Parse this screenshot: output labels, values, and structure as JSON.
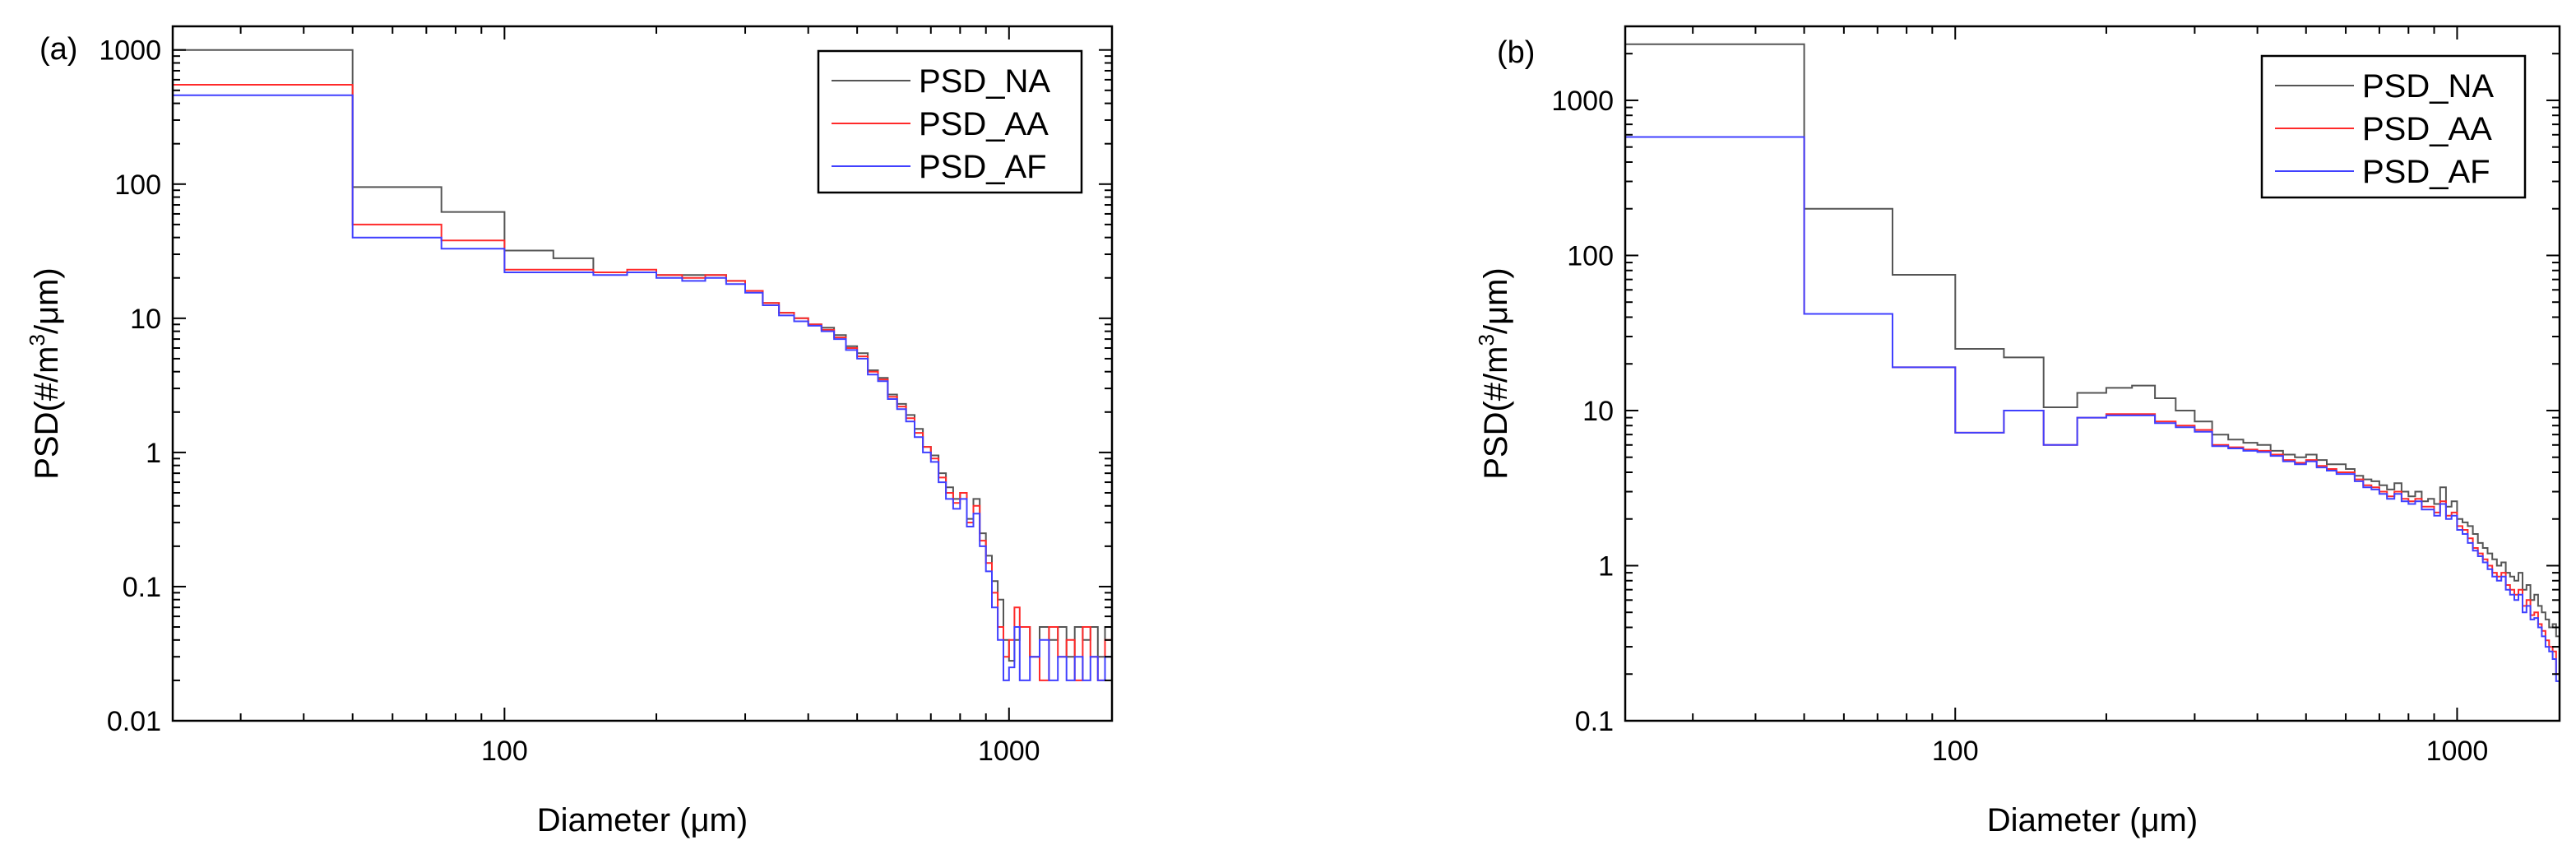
{
  "colors": {
    "PSD_NA": "#555555",
    "PSD_AA": "#ff2a2a",
    "PSD_AF": "#4040ff"
  },
  "chart_data": [
    {
      "type": "line",
      "panel_label": "(a)",
      "xlabel_prefix": "Diameter (",
      "xlabel_mu": "μ",
      "xlabel_suffix": "m)",
      "ylabel_prefix": "PSD(#/m",
      "ylabel_sup": "3",
      "ylabel_suffix": "/μm)",
      "xscale": "log",
      "yscale": "log",
      "xlim": [
        22,
        1600
      ],
      "ylim": [
        0.01,
        1500
      ],
      "xticks": [
        100,
        1000
      ],
      "xtick_labels": [
        "100",
        "1000"
      ],
      "yticks": [
        0.01,
        0.1,
        1,
        10,
        100,
        1000
      ],
      "ytick_labels": [
        "0.01",
        "0.1",
        "1",
        "10",
        "100",
        "1000"
      ],
      "legend_position": "top-right",
      "grid": false,
      "series": [
        {
          "name": "PSD_NA",
          "x": [
            22,
            50,
            75,
            100,
            125,
            150,
            175,
            200,
            225,
            250,
            275,
            300,
            325,
            350,
            375,
            400,
            425,
            450,
            475,
            500,
            525,
            550,
            575,
            600,
            625,
            650,
            675,
            700,
            725,
            750,
            775,
            800,
            825,
            850,
            875,
            900,
            925,
            950,
            975,
            1000,
            1025,
            1050,
            1100,
            1150,
            1200,
            1250,
            1300,
            1350,
            1400,
            1450,
            1500,
            1550,
            1600
          ],
          "y": [
            1000,
            95,
            62,
            32,
            28,
            22,
            22,
            21,
            21,
            21,
            19,
            16,
            13,
            11,
            10,
            9,
            8.5,
            7.5,
            6.2,
            5.5,
            4.1,
            3.6,
            2.7,
            2.3,
            1.9,
            1.5,
            1.1,
            0.95,
            0.7,
            0.55,
            0.45,
            0.5,
            0.32,
            0.45,
            0.25,
            0.17,
            0.11,
            0.08,
            0.04,
            0.028,
            0.04,
            0.05,
            0.03,
            0.05,
            0.04,
            0.05,
            0.03,
            0.05,
            0.04,
            0.05,
            0.03,
            0.05,
            0.05
          ]
        },
        {
          "name": "PSD_AA",
          "x": [
            22,
            50,
            75,
            100,
            125,
            150,
            175,
            200,
            225,
            250,
            275,
            300,
            325,
            350,
            375,
            400,
            425,
            450,
            475,
            500,
            525,
            550,
            575,
            600,
            625,
            650,
            675,
            700,
            725,
            750,
            775,
            800,
            825,
            850,
            875,
            900,
            925,
            950,
            975,
            1000,
            1025,
            1050,
            1100,
            1150,
            1200,
            1250,
            1300,
            1350,
            1400,
            1450,
            1500,
            1550,
            1600
          ],
          "y": [
            550,
            50,
            38,
            23,
            23,
            22,
            23,
            21,
            20,
            21,
            19,
            16,
            13,
            11,
            10,
            9,
            8.2,
            7.2,
            6.0,
            5.2,
            4.0,
            3.5,
            2.6,
            2.2,
            1.8,
            1.4,
            1.1,
            0.9,
            0.65,
            0.5,
            0.42,
            0.5,
            0.3,
            0.4,
            0.22,
            0.15,
            0.09,
            0.05,
            0.03,
            0.04,
            0.07,
            0.05,
            0.03,
            0.02,
            0.05,
            0.03,
            0.04,
            0.02,
            0.05,
            0.03,
            0.02,
            0.04,
            0.04
          ]
        },
        {
          "name": "PSD_AF",
          "x": [
            22,
            50,
            75,
            100,
            125,
            150,
            175,
            200,
            225,
            250,
            275,
            300,
            325,
            350,
            375,
            400,
            425,
            450,
            475,
            500,
            525,
            550,
            575,
            600,
            625,
            650,
            675,
            700,
            725,
            750,
            775,
            800,
            825,
            850,
            875,
            900,
            925,
            950,
            975,
            1000,
            1025,
            1050,
            1100,
            1150,
            1200,
            1250,
            1300,
            1350,
            1400,
            1450,
            1500,
            1550,
            1600
          ],
          "y": [
            460,
            40,
            33,
            22,
            22,
            21,
            22,
            20,
            19,
            20,
            18,
            15.5,
            12.5,
            10.5,
            9.5,
            8.8,
            8,
            7,
            5.8,
            5,
            3.8,
            3.4,
            2.5,
            2.1,
            1.7,
            1.3,
            1.0,
            0.85,
            0.6,
            0.45,
            0.38,
            0.45,
            0.28,
            0.35,
            0.2,
            0.13,
            0.07,
            0.04,
            0.02,
            0.025,
            0.05,
            0.02,
            0.03,
            0.04,
            0.02,
            0.03,
            0.02,
            0.03,
            0.02,
            0.03,
            0.02,
            0.03,
            0.03
          ]
        }
      ]
    },
    {
      "type": "line",
      "panel_label": "(b)",
      "xlabel_prefix": "Diameter (",
      "xlabel_mu": "μ",
      "xlabel_suffix": "m)",
      "ylabel_prefix": "PSD(#/m",
      "ylabel_sup": "3",
      "ylabel_suffix": "/μm)",
      "xscale": "log",
      "yscale": "log",
      "xlim": [
        22,
        1600
      ],
      "ylim": [
        0.1,
        3000
      ],
      "xticks": [
        100,
        1000
      ],
      "xtick_labels": [
        "100",
        "1000"
      ],
      "yticks": [
        0.1,
        1,
        10,
        100,
        1000
      ],
      "ytick_labels": [
        "0.1",
        "1",
        "10",
        "100",
        "1000"
      ],
      "legend_position": "top-right",
      "grid": false,
      "series": [
        {
          "name": "PSD_NA",
          "x": [
            22,
            50,
            75,
            100,
            125,
            150,
            175,
            200,
            225,
            250,
            275,
            300,
            325,
            350,
            375,
            400,
            425,
            450,
            475,
            500,
            525,
            550,
            575,
            600,
            625,
            650,
            675,
            700,
            725,
            750,
            775,
            800,
            825,
            850,
            875,
            900,
            925,
            950,
            975,
            1000,
            1025,
            1050,
            1075,
            1100,
            1125,
            1150,
            1175,
            1200,
            1225,
            1250,
            1275,
            1300,
            1325,
            1350,
            1375,
            1400,
            1425,
            1450,
            1475,
            1500,
            1525,
            1550,
            1575,
            1600
          ],
          "y": [
            2300,
            200,
            75,
            25,
            22,
            10.5,
            13,
            14,
            14.5,
            12,
            10,
            8.5,
            7,
            6.5,
            6.2,
            6,
            5.5,
            5.2,
            5,
            5.2,
            4.8,
            4.5,
            4.5,
            4.2,
            3.8,
            3.6,
            3.5,
            3.3,
            3.1,
            3.4,
            3.0,
            2.8,
            3.0,
            2.6,
            2.7,
            2.5,
            3.2,
            2.4,
            2.6,
            2.0,
            1.9,
            1.8,
            1.6,
            1.4,
            1.3,
            1.2,
            1.1,
            1.0,
            1.05,
            0.9,
            0.85,
            0.8,
            0.9,
            0.7,
            0.75,
            0.6,
            0.65,
            0.55,
            0.5,
            0.45,
            0.4,
            0.42,
            0.35,
            0.3
          ]
        },
        {
          "name": "PSD_AA",
          "x": [
            22,
            50,
            75,
            100,
            125,
            150,
            175,
            200,
            225,
            250,
            275,
            300,
            325,
            350,
            375,
            400,
            425,
            450,
            475,
            500,
            525,
            550,
            575,
            600,
            625,
            650,
            675,
            700,
            725,
            750,
            775,
            800,
            825,
            850,
            875,
            900,
            925,
            950,
            975,
            1000,
            1025,
            1050,
            1075,
            1100,
            1125,
            1150,
            1175,
            1200,
            1225,
            1250,
            1275,
            1300,
            1325,
            1350,
            1375,
            1400,
            1425,
            1450,
            1475,
            1500,
            1525,
            1550,
            1575,
            1600
          ],
          "y": [
            580,
            42,
            19,
            7.2,
            10,
            6,
            9,
            9.5,
            9.5,
            8.5,
            8,
            7.5,
            6,
            5.8,
            5.6,
            5.5,
            5.2,
            4.8,
            4.6,
            4.8,
            4.4,
            4.2,
            4.0,
            4.0,
            3.6,
            3.3,
            3.2,
            3.0,
            2.8,
            3.0,
            2.7,
            2.6,
            2.7,
            2.4,
            2.4,
            2.2,
            2.6,
            2.1,
            2.2,
            1.8,
            1.7,
            1.5,
            1.3,
            1.2,
            1.1,
            1.0,
            0.9,
            0.85,
            0.9,
            0.75,
            0.7,
            0.65,
            0.7,
            0.55,
            0.6,
            0.48,
            0.5,
            0.42,
            0.38,
            0.33,
            0.3,
            0.28,
            0.2,
            0.15
          ]
        },
        {
          "name": "PSD_AF",
          "x": [
            22,
            50,
            75,
            100,
            125,
            150,
            175,
            200,
            225,
            250,
            275,
            300,
            325,
            350,
            375,
            400,
            425,
            450,
            475,
            500,
            525,
            550,
            575,
            600,
            625,
            650,
            675,
            700,
            725,
            750,
            775,
            800,
            825,
            850,
            875,
            900,
            925,
            950,
            975,
            1000,
            1025,
            1050,
            1075,
            1100,
            1125,
            1150,
            1175,
            1200,
            1225,
            1250,
            1275,
            1300,
            1325,
            1350,
            1375,
            1400,
            1425,
            1450,
            1475,
            1500,
            1525,
            1550,
            1575,
            1600
          ],
          "y": [
            580,
            42,
            19,
            7.2,
            10,
            6,
            9,
            9.3,
            9.3,
            8.3,
            7.8,
            7.3,
            5.9,
            5.7,
            5.5,
            5.4,
            5.1,
            4.7,
            4.5,
            4.7,
            4.3,
            4.1,
            3.9,
            3.9,
            3.5,
            3.2,
            3.1,
            2.9,
            2.7,
            2.9,
            2.6,
            2.5,
            2.6,
            2.3,
            2.3,
            2.1,
            2.5,
            2.0,
            2.1,
            1.7,
            1.6,
            1.4,
            1.25,
            1.15,
            1.05,
            0.95,
            0.85,
            0.8,
            0.85,
            0.7,
            0.65,
            0.6,
            0.65,
            0.5,
            0.55,
            0.45,
            0.46,
            0.4,
            0.35,
            0.3,
            0.28,
            0.25,
            0.18,
            0.13
          ]
        }
      ]
    }
  ]
}
